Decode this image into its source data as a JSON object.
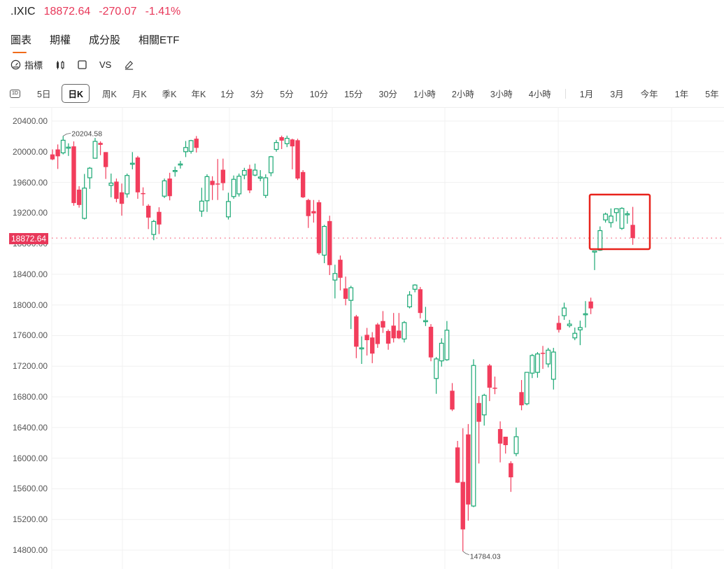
{
  "header": {
    "symbol": ".IXIC",
    "price": "18872.64",
    "change": "-270.07",
    "change_pct": "-1.41%",
    "color": "#e8385a"
  },
  "tabs": [
    {
      "label": "圖表",
      "active": true
    },
    {
      "label": "期權"
    },
    {
      "label": "成分股"
    },
    {
      "label": "相關ETF"
    }
  ],
  "tools": {
    "indicators_label": "指標",
    "candle_icon": "candlestick-icon",
    "square_icon": "square-icon",
    "vs_label": "VS",
    "draw_icon": "pen-icon"
  },
  "periods": {
    "icon": "1D",
    "items": [
      "5日",
      "日K",
      "周K",
      "月K",
      "季K",
      "年K",
      "1分",
      "3分",
      "5分",
      "10分",
      "15分",
      "30分",
      "1小時",
      "2小時",
      "3小時",
      "4小時"
    ],
    "active": "日K",
    "ranges": [
      "1月",
      "3月",
      "今年",
      "1年",
      "5年"
    ]
  },
  "colors": {
    "up": "#1aa874",
    "down": "#f23d5c",
    "highlight_box": "#e8231c",
    "grid": "#f0f0f0"
  },
  "current_price_label": "18872.64",
  "chart_data": {
    "type": "candlestick",
    "title": ".IXIC daily",
    "ylabel": "",
    "xlabel": "",
    "ylim": [
      14650,
      20550
    ],
    "yticks": [
      "20400.00",
      "20000.00",
      "19600.00",
      "19200.00",
      "18800.00",
      "18400.00",
      "18000.00",
      "17600.00",
      "17200.00",
      "16800.00",
      "16400.00",
      "16000.00",
      "15600.00",
      "15200.00",
      "14800.00"
    ],
    "annotations": [
      {
        "label": "20204.58",
        "type": "high"
      },
      {
        "label": "14784.03",
        "type": "low"
      }
    ],
    "current_price_line": 18872.64,
    "highlight_box": "last 8 candles",
    "candles": [
      [
        19965,
        19900,
        20030,
        19890
      ],
      [
        20030,
        19940,
        20095,
        19775
      ],
      [
        19985,
        20150,
        20205,
        19965
      ],
      [
        20055,
        20060,
        20110,
        19945
      ],
      [
        20070,
        19330,
        20135,
        19295
      ],
      [
        19505,
        19305,
        19550,
        19270
      ],
      [
        19130,
        19525,
        19710,
        19115
      ],
      [
        19660,
        19785,
        19800,
        19515
      ],
      [
        19915,
        20135,
        20180,
        19925
      ],
      [
        20115,
        20090,
        20135,
        19955
      ],
      [
        19995,
        19800,
        19995,
        19645
      ],
      [
        19560,
        19590,
        19715,
        19405
      ],
      [
        19610,
        19385,
        19650,
        19340
      ],
      [
        19470,
        19320,
        19585,
        19165
      ],
      [
        19450,
        19690,
        19715,
        19400
      ],
      [
        19840,
        19850,
        19995,
        19770
      ],
      [
        19925,
        19470,
        19945,
        19385
      ],
      [
        19460,
        19450,
        19535,
        19295
      ],
      [
        19295,
        19140,
        19315,
        18990
      ],
      [
        18920,
        19090,
        19110,
        18845
      ],
      [
        19215,
        19050,
        19275,
        18925
      ],
      [
        19420,
        19620,
        19650,
        19395
      ],
      [
        19650,
        19420,
        19725,
        19365
      ],
      [
        19750,
        19755,
        19805,
        19675
      ],
      [
        19835,
        19840,
        19880,
        19780
      ],
      [
        20000,
        20055,
        20140,
        19930
      ],
      [
        20005,
        20145,
        20155,
        19975
      ],
      [
        20170,
        20050,
        20205,
        19990
      ],
      [
        19225,
        19355,
        19530,
        19150
      ],
      [
        19360,
        19675,
        19705,
        19215
      ],
      [
        19620,
        19565,
        19680,
        19370
      ],
      [
        19585,
        19580,
        19905,
        19370
      ],
      [
        19765,
        19590,
        19910,
        19495
      ],
      [
        19150,
        19350,
        19465,
        19115
      ],
      [
        19415,
        19640,
        19690,
        19385
      ],
      [
        19450,
        19680,
        19715,
        19415
      ],
      [
        19695,
        19755,
        19790,
        19640
      ],
      [
        19775,
        19495,
        19830,
        19460
      ],
      [
        19695,
        19760,
        19845,
        19680
      ],
      [
        19655,
        19670,
        19760,
        19615
      ],
      [
        19430,
        19660,
        19705,
        19395
      ],
      [
        19725,
        19935,
        19945,
        19680
      ],
      [
        20030,
        20120,
        20155,
        20000
      ],
      [
        20190,
        20145,
        20210,
        20035
      ],
      [
        20105,
        20175,
        20210,
        20060
      ],
      [
        20160,
        20070,
        20170,
        19770
      ],
      [
        20150,
        19650,
        20170,
        19630
      ],
      [
        19735,
        19405,
        19760,
        19395
      ],
      [
        19370,
        19160,
        19385,
        19005
      ],
      [
        19225,
        19195,
        19370,
        19075
      ],
      [
        19340,
        18675,
        19370,
        18655
      ],
      [
        18650,
        19025,
        19045,
        18545
      ],
      [
        19095,
        18520,
        19165,
        18390
      ],
      [
        18325,
        18410,
        18525,
        18085
      ],
      [
        18590,
        18355,
        18645,
        18190
      ],
      [
        18215,
        18080,
        18370,
        17995
      ],
      [
        18060,
        18225,
        18250,
        17685
      ],
      [
        17850,
        17455,
        17870,
        17305
      ],
      [
        17435,
        17440,
        17590,
        17230
      ],
      [
        17610,
        17540,
        17700,
        17340
      ],
      [
        17575,
        17365,
        17645,
        17240
      ],
      [
        17745,
        17490,
        17765,
        17440
      ],
      [
        17790,
        17705,
        17920,
        17635
      ],
      [
        17660,
        17495,
        17680,
        17415
      ],
      [
        17730,
        17565,
        17895,
        17510
      ],
      [
        17665,
        17565,
        17895,
        17555
      ],
      [
        17555,
        17770,
        17790,
        17510
      ],
      [
        17975,
        18130,
        18180,
        17955
      ],
      [
        18205,
        18260,
        18270,
        18165
      ],
      [
        18205,
        17895,
        18235,
        17825
      ],
      [
        17795,
        17795,
        17975,
        17725
      ],
      [
        17715,
        17315,
        17750,
        17265
      ],
      [
        17040,
        17295,
        17320,
        16840
      ],
      [
        17270,
        17500,
        17565,
        17195
      ],
      [
        17285,
        17670,
        17790,
        17270
      ],
      [
        16880,
        16635,
        16980,
        16615
      ],
      [
        16140,
        15680,
        16225,
        15675
      ],
      [
        15690,
        15070,
        16390,
        14784
      ],
      [
        16310,
        15395,
        16445,
        15185
      ],
      [
        15375,
        17210,
        17290,
        15360
      ],
      [
        16720,
        16475,
        16810,
        15930
      ],
      [
        16565,
        16820,
        16840,
        16425
      ],
      [
        17210,
        16920,
        17230,
        16745
      ],
      [
        16920,
        16910,
        17065,
        16835
      ],
      [
        16380,
        16190,
        16480,
        15945
      ],
      [
        16280,
        16170,
        16280,
        16060
      ],
      [
        15935,
        15750,
        15960,
        15560
      ],
      [
        16060,
        16280,
        16400,
        16025
      ],
      [
        16862,
        16690,
        17020,
        16625
      ],
      [
        16710,
        17120,
        17120,
        16690
      ],
      [
        17110,
        17340,
        17360,
        17045
      ],
      [
        17120,
        17360,
        17385,
        17050
      ],
      [
        17375,
        17370,
        17465,
        17165
      ],
      [
        17230,
        17410,
        17440,
        17185
      ],
      [
        17030,
        17385,
        17440,
        16895
      ],
      [
        17765,
        17675,
        17860,
        17640
      ],
      [
        17860,
        17960,
        18030,
        17805
      ],
      [
        17730,
        17750,
        17805,
        17705
      ],
      [
        17570,
        17630,
        17705,
        17540
      ],
      [
        17675,
        17705,
        17795,
        17475
      ],
      [
        17880,
        17885,
        18050,
        17705
      ],
      [
        18045,
        17955,
        18095,
        17880
      ],
      [
        18690,
        18705,
        18710,
        18455
      ],
      [
        18715,
        18970,
        19025,
        18705
      ],
      [
        19110,
        19185,
        19205,
        19075
      ],
      [
        19075,
        19160,
        19260,
        19010
      ],
      [
        19205,
        19255,
        19260,
        19090
      ],
      [
        19000,
        19260,
        19275,
        18980
      ],
      [
        19185,
        19190,
        19225,
        19060
      ],
      [
        19045,
        18872.64,
        19280,
        18785
      ]
    ]
  }
}
